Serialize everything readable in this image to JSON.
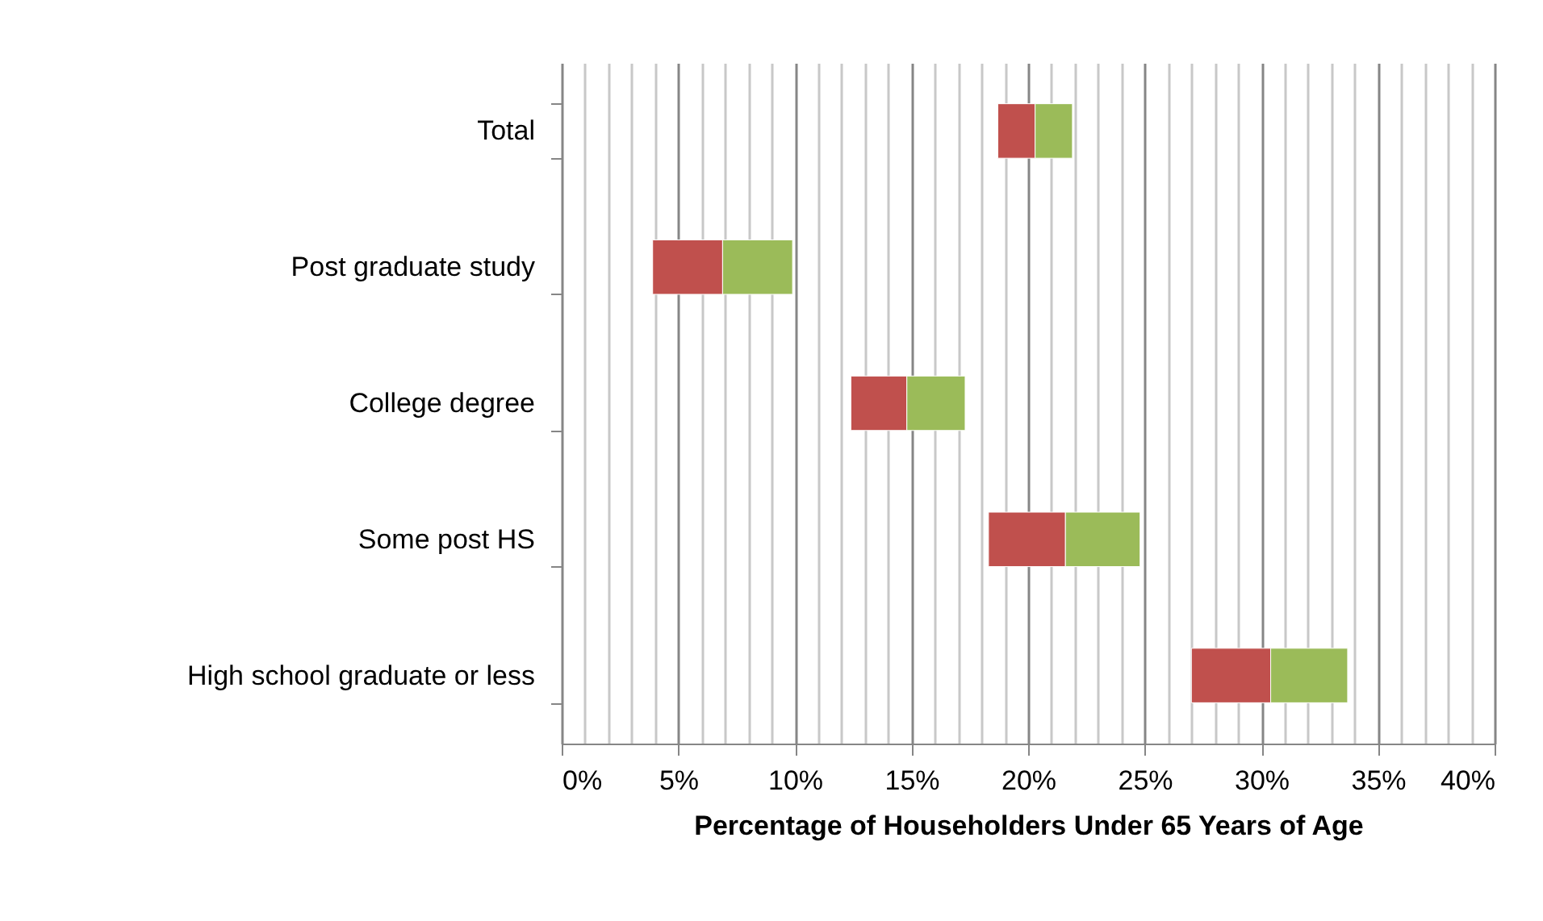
{
  "chart_data": {
    "type": "bar",
    "orientation": "horizontal",
    "xlabel": "Percentage of Householders Under 65 Years of Age",
    "categories": [
      "Total",
      "Post graduate study",
      "College degree",
      "Some post HS",
      "High school graduate or less"
    ],
    "series": [
      {
        "color": "#c0504d",
        "base": [
          18.7,
          3.9,
          12.4,
          18.3,
          27.0
        ],
        "values": [
          1.6,
          3.0,
          2.4,
          3.3,
          3.4
        ]
      },
      {
        "color": "#9bbb59",
        "base": [
          20.3,
          6.9,
          14.8,
          21.6,
          30.4
        ],
        "values": [
          1.6,
          3.0,
          2.5,
          3.2,
          3.3
        ]
      }
    ],
    "xlim": [
      0,
      40
    ],
    "xticks": [
      {
        "value": 0,
        "label": "0%"
      },
      {
        "value": 1,
        "label": null
      },
      {
        "value": 2,
        "label": null
      },
      {
        "value": 3,
        "label": null
      },
      {
        "value": 4,
        "label": null
      },
      {
        "value": 5,
        "label": "5%"
      },
      {
        "value": 6,
        "label": null
      },
      {
        "value": 7,
        "label": null
      },
      {
        "value": 8,
        "label": null
      },
      {
        "value": 9,
        "label": null
      },
      {
        "value": 10,
        "label": "10%"
      },
      {
        "value": 11,
        "label": null
      },
      {
        "value": 12,
        "label": null
      },
      {
        "value": 13,
        "label": null
      },
      {
        "value": 14,
        "label": null
      },
      {
        "value": 15,
        "label": "15%"
      },
      {
        "value": 16,
        "label": null
      },
      {
        "value": 17,
        "label": null
      },
      {
        "value": 18,
        "label": null
      },
      {
        "value": 19,
        "label": null
      },
      {
        "value": 20,
        "label": "20%"
      },
      {
        "value": 21,
        "label": null
      },
      {
        "value": 22,
        "label": null
      },
      {
        "value": 23,
        "label": null
      },
      {
        "value": 24,
        "label": null
      },
      {
        "value": 25,
        "label": "25%"
      },
      {
        "value": 26,
        "label": null
      },
      {
        "value": 27,
        "label": null
      },
      {
        "value": 28,
        "label": null
      },
      {
        "value": 29,
        "label": null
      },
      {
        "value": 30,
        "label": "30%"
      },
      {
        "value": 31,
        "label": null
      },
      {
        "value": 32,
        "label": null
      },
      {
        "value": 33,
        "label": null
      },
      {
        "value": 34,
        "label": null
      },
      {
        "value": 35,
        "label": "35%"
      },
      {
        "value": 36,
        "label": null
      },
      {
        "value": 37,
        "label": null
      },
      {
        "value": 38,
        "label": null
      },
      {
        "value": 39,
        "label": null
      },
      {
        "value": 40,
        "label": "40%"
      }
    ],
    "grid": "x"
  }
}
